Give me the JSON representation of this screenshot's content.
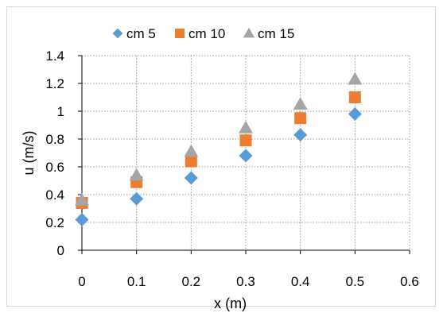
{
  "chart_data": {
    "type": "scatter",
    "title": "",
    "xlabel": "x (m)",
    "ylabel": "u (m/s)",
    "xlim": [
      0,
      0.6
    ],
    "ylim": [
      0,
      1.4
    ],
    "xticks": [
      0,
      0.1,
      0.2,
      0.3,
      0.4,
      0.5,
      0.6
    ],
    "xtick_labels": [
      "0",
      "0.1",
      "0.2",
      "0.3",
      "0.4",
      "0.5",
      "0.6"
    ],
    "yticks": [
      0,
      0.2,
      0.4,
      0.6,
      0.8,
      1,
      1.2,
      1.4
    ],
    "ytick_labels": [
      "0",
      "0.2",
      "0.4",
      "0.6",
      "0.8",
      "1",
      "1.2",
      "1.4"
    ],
    "grid": true,
    "legend_position": "top",
    "series": [
      {
        "name": "cm 5",
        "marker": "diamond",
        "color": "#5b9bd5",
        "x": [
          0,
          0.1,
          0.2,
          0.3,
          0.4,
          0.5
        ],
        "y": [
          0.22,
          0.37,
          0.52,
          0.68,
          0.83,
          0.98
        ]
      },
      {
        "name": "cm 10",
        "marker": "square",
        "color": "#ed7d31",
        "x": [
          0,
          0.1,
          0.2,
          0.3,
          0.4,
          0.5
        ],
        "y": [
          0.34,
          0.49,
          0.64,
          0.79,
          0.95,
          1.1
        ]
      },
      {
        "name": "cm 15",
        "marker": "triangle",
        "color": "#a5a5a5",
        "x": [
          0,
          0.1,
          0.2,
          0.3,
          0.4,
          0.5
        ],
        "y": [
          0.36,
          0.54,
          0.71,
          0.88,
          1.05,
          1.23
        ]
      }
    ]
  }
}
